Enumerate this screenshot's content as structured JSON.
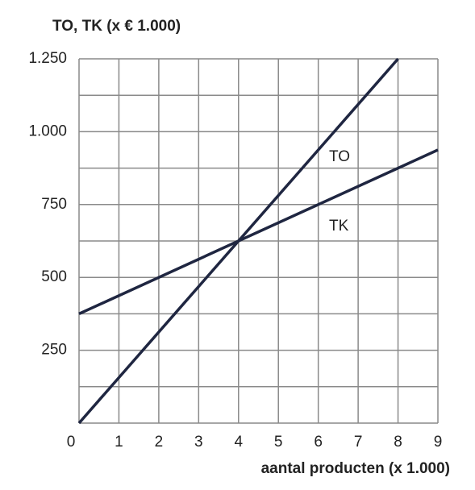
{
  "chart_data": {
    "type": "line",
    "ylabel": "TO, TK (x € 1.000)",
    "xlabel": "aantal producten (x 1.000)",
    "xlim": [
      0,
      9
    ],
    "xticks": [
      0,
      1,
      2,
      3,
      4,
      5,
      6,
      7,
      8,
      9
    ],
    "ylim": [
      0,
      1250
    ],
    "yticks": [
      {
        "value": 250,
        "label": "250"
      },
      {
        "value": 500,
        "label": "500"
      },
      {
        "value": 750,
        "label": "750"
      },
      {
        "value": 1000,
        "label": "1.000"
      },
      {
        "value": 1250,
        "label": "1.250"
      }
    ],
    "ygrid": [
      0,
      125,
      250,
      375,
      500,
      625,
      750,
      875,
      1000,
      1125,
      1250
    ],
    "grid": true,
    "series": [
      {
        "name": "TO",
        "color": "#1f2641",
        "x": [
          0,
          8
        ],
        "values": [
          0,
          1250
        ]
      },
      {
        "name": "TK",
        "color": "#1f2641",
        "x": [
          0,
          9
        ],
        "values": [
          375,
          937.5
        ]
      }
    ]
  }
}
